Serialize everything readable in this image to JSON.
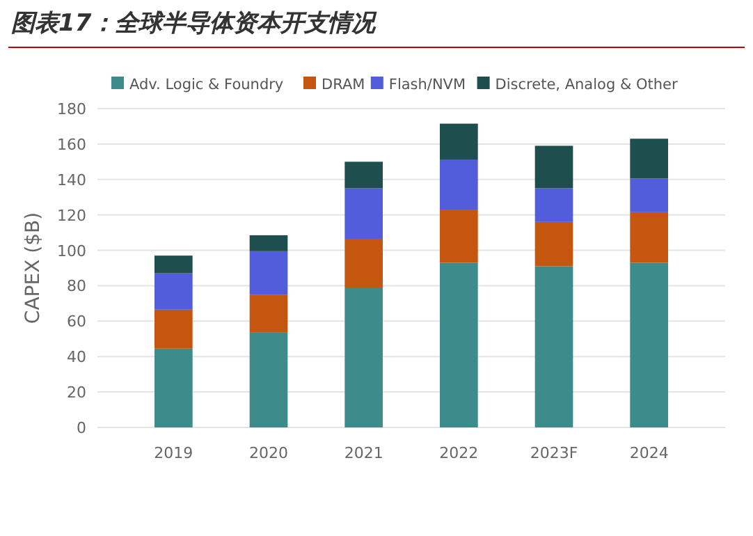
{
  "chart_data": {
    "type": "bar",
    "title": "图表17：全球半导体资本开支情况",
    "ylabel": "CAPEX ($B)",
    "categories": [
      "2019",
      "2020",
      "2021",
      "2022",
      "2023F",
      "2024"
    ],
    "stacked": true,
    "ylim": [
      0,
      180
    ],
    "yticks": [
      0,
      20,
      40,
      60,
      80,
      100,
      120,
      140,
      160,
      180
    ],
    "grid": "y",
    "legend": "top",
    "series": [
      {
        "name": "Adv. Logic & Foundry",
        "color": "#3d8b8a",
        "values": [
          44.5,
          53.5,
          79,
          93,
          91,
          93
        ]
      },
      {
        "name": "DRAM",
        "color": "#c5560f",
        "values": [
          22,
          21.5,
          27.5,
          30,
          25,
          28.5
        ]
      },
      {
        "name": "Flash/NVM",
        "color": "#525ddc",
        "values": [
          20.5,
          24.5,
          28.5,
          28,
          19,
          19
        ]
      },
      {
        "name": "Discrete, Analog & Other",
        "color": "#1f4e4f",
        "values": [
          10,
          9,
          15,
          20.5,
          24,
          22.5
        ]
      }
    ]
  }
}
